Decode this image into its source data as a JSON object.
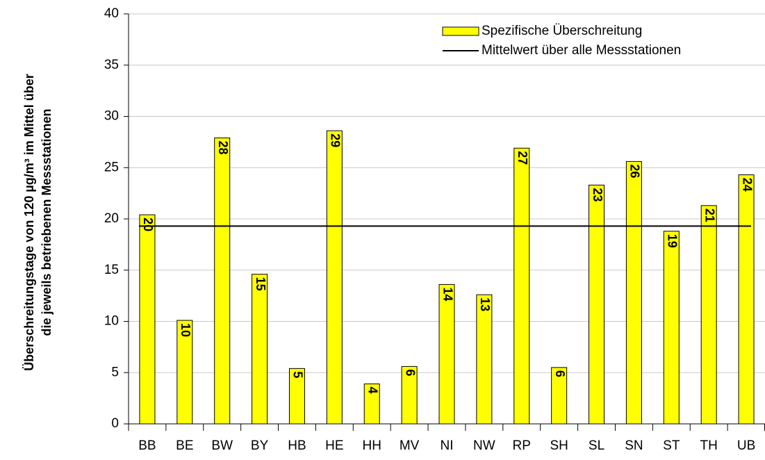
{
  "chart_data": {
    "type": "bar",
    "ylabel": [
      "Überschreitungstage von 120 µg/m³ im Mittel über",
      "die jeweils betriebenen Messstationen"
    ],
    "categories": [
      "BB",
      "BE",
      "BW",
      "BY",
      "HB",
      "HE",
      "HH",
      "MV",
      "NI",
      "NW",
      "RP",
      "SH",
      "SL",
      "SN",
      "ST",
      "TH",
      "UB"
    ],
    "series": [
      {
        "name": "Spezifische Überschreitung",
        "color": "#ffff00",
        "values": [
          20.4,
          10.1,
          27.9,
          14.6,
          5.4,
          28.6,
          3.9,
          5.6,
          13.6,
          12.6,
          26.9,
          5.5,
          23.3,
          25.6,
          18.8,
          21.3,
          24.3
        ],
        "value_labels": [
          "20",
          "10",
          "28",
          "15",
          "5",
          "29",
          "4",
          "6",
          "14",
          "13",
          "27",
          "6",
          "23",
          "26",
          "19",
          "21",
          "24"
        ]
      }
    ],
    "mean": {
      "name": "Mittelwert über alle Messstationen",
      "value": 19.3,
      "color": "#000000"
    },
    "ylim": [
      0,
      40
    ],
    "yticks": [
      0,
      5,
      10,
      15,
      20,
      25,
      30,
      35,
      40
    ],
    "grid": true,
    "legend": "top-right"
  }
}
